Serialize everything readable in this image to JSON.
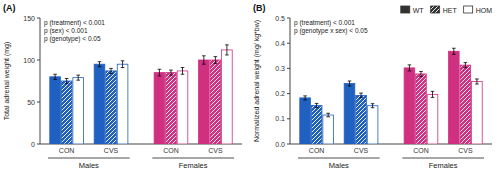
{
  "chart_data": [
    {
      "type": "bar",
      "title": "(A)",
      "y_label": "Total adrenal weight (mg)",
      "categories": [
        "CON",
        "CVS",
        "CON",
        "CVS"
      ],
      "category_groups": [
        "Males",
        "Females"
      ],
      "ylim": [
        0,
        150
      ],
      "yticks": [
        0,
        50,
        100,
        150
      ],
      "grid": false,
      "annotations": [
        "p (treatment) < 0.001",
        "p (sex) < 0.001",
        "p (genotype) < 0.05"
      ],
      "series": [
        {
          "name": "WT",
          "colors": [
            "#2060c0",
            "#2060c0",
            "#d03080",
            "#d03080"
          ],
          "values": [
            80,
            95,
            85,
            100
          ],
          "errors": [
            3,
            3,
            4,
            5
          ]
        },
        {
          "name": "HET",
          "colors": [
            "#2060c0",
            "#2060c0",
            "#d03080",
            "#d03080"
          ],
          "values": [
            75,
            87,
            85,
            100
          ],
          "errors": [
            3,
            3,
            3,
            4
          ]
        },
        {
          "name": "HOM",
          "colors": [
            "#2060c0",
            "#2060c0",
            "#d03080",
            "#d03080"
          ],
          "values": [
            79,
            95,
            87,
            112
          ],
          "errors": [
            3,
            4,
            4,
            6
          ]
        }
      ]
    },
    {
      "type": "bar",
      "title": "(B)",
      "y_label": "Normalized adrenal weight (mg/ kg*bw)",
      "categories": [
        "CON",
        "CVS",
        "CON",
        "CVS"
      ],
      "category_groups": [
        "Males",
        "Females"
      ],
      "ylim": [
        0.0,
        0.5
      ],
      "yticks": [
        {
          "value": 0.0,
          "label": "0.0"
        },
        0.1,
        0.2,
        0.3,
        0.4,
        0.5
      ],
      "grid": false,
      "annotations": [
        "p (treatment) < 0.001",
        "p (genotype x sex) < 0.05"
      ],
      "legend": "upper right",
      "color": "#333333",
      "series": [
        {
          "name": "WT",
          "colors": [
            "#2060c0",
            "#2060c0",
            "#d03080",
            "#d03080"
          ],
          "values": [
            0.183,
            0.24,
            0.302,
            0.368
          ],
          "errors": [
            0.008,
            0.01,
            0.012,
            0.012
          ]
        },
        {
          "name": "HET",
          "colors": [
            "#2060c0",
            "#2060c0",
            "#d03080",
            "#d03080"
          ],
          "values": [
            0.153,
            0.193,
            0.278,
            0.313
          ],
          "errors": [
            0.008,
            0.009,
            0.01,
            0.01
          ]
        },
        {
          "name": "HOM",
          "colors": [
            "#2060c0",
            "#2060c0",
            "#d03080",
            "#d03080"
          ],
          "values": [
            0.115,
            0.152,
            0.197,
            0.248
          ],
          "errors": [
            0.007,
            0.008,
            0.012,
            0.01
          ]
        }
      ]
    }
  ]
}
